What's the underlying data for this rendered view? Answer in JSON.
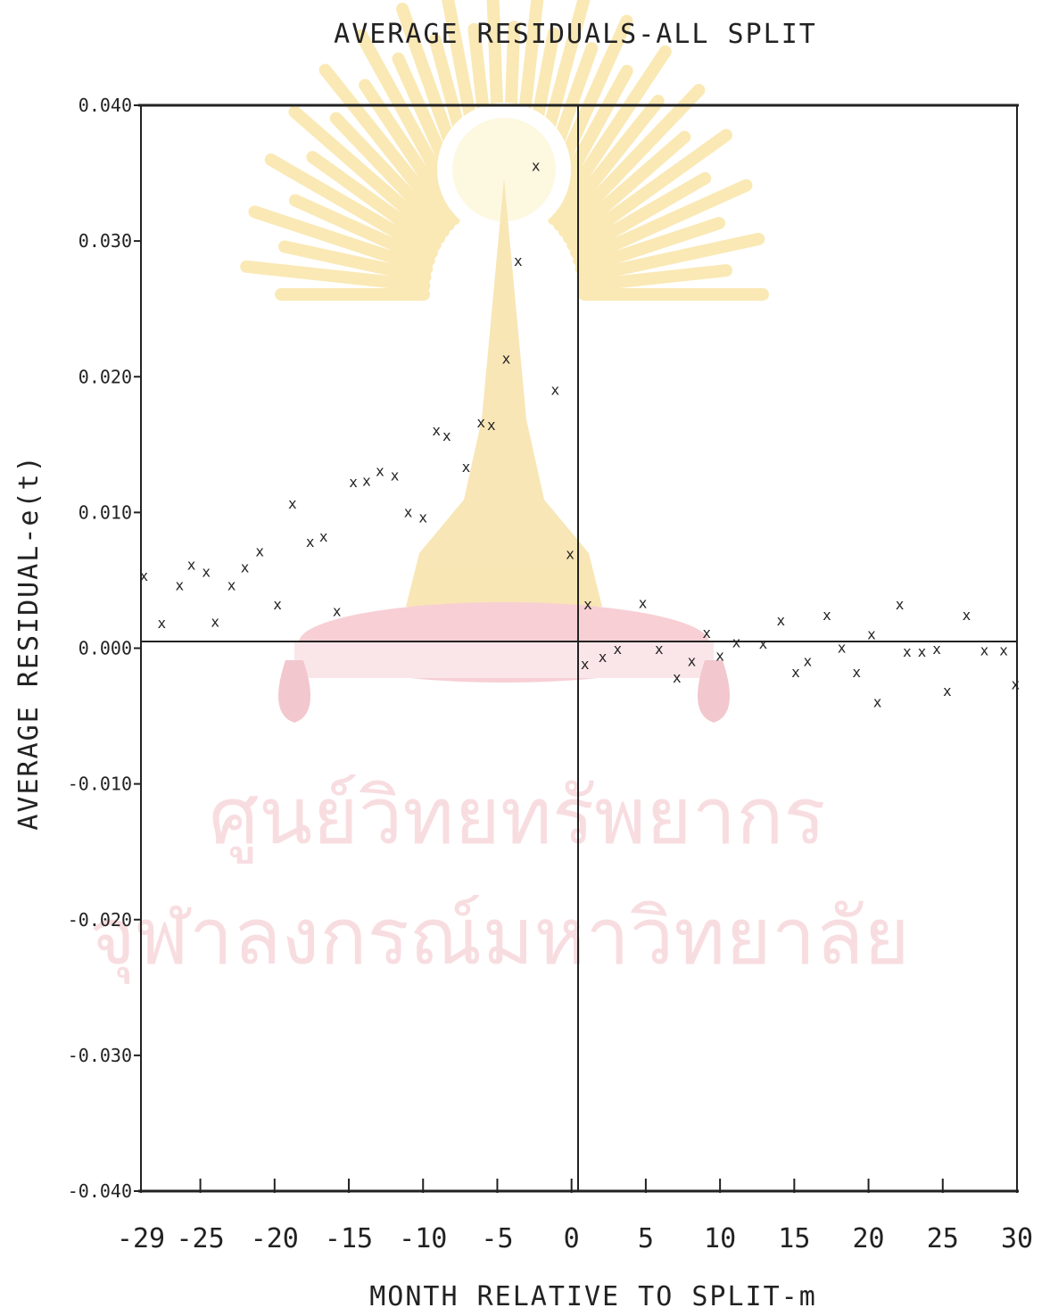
{
  "chart_data": {
    "type": "scatter",
    "title": "AVERAGE RESIDUALS-ALL SPLIT",
    "xlabel": "MONTH RELATIVE TO SPLIT-m",
    "ylabel": "AVERAGE RESIDUAL-e(t)",
    "xlim": [
      -29,
      30
    ],
    "ylim": [
      -0.04,
      0.04
    ],
    "x_ticks": [
      -29,
      -25,
      -20,
      -15,
      -10,
      -5,
      0,
      5,
      10,
      15,
      20,
      25,
      30
    ],
    "x_tick_labels": [
      "-29",
      "-25",
      "-20",
      "-15",
      "-10",
      "-5",
      "0",
      "5",
      "10",
      "15",
      "20",
      "25",
      "30"
    ],
    "y_ticks": [
      0.04,
      0.03,
      0.02,
      0.01,
      0.0,
      -0.01,
      -0.02,
      -0.03,
      -0.04
    ],
    "y_tick_labels": [
      "0.040",
      "0.030",
      "0.020",
      "0.010",
      "0.000",
      "-0.010",
      "-0.020",
      "-0.030",
      "-0.040"
    ],
    "grid": false,
    "reference_lines": {
      "x": 0,
      "y": 0
    },
    "marker": "x",
    "points": [
      [
        -28.8,
        0.0053
      ],
      [
        -27.6,
        0.0018
      ],
      [
        -26.4,
        0.0046
      ],
      [
        -25.6,
        0.0061
      ],
      [
        -24.6,
        0.0056
      ],
      [
        -24.0,
        0.0019
      ],
      [
        -22.9,
        0.0046
      ],
      [
        -22.0,
        0.0059
      ],
      [
        -21.0,
        0.0071
      ],
      [
        -19.8,
        0.0032
      ],
      [
        -18.8,
        0.0106
      ],
      [
        -17.6,
        0.0078
      ],
      [
        -16.7,
        0.0082
      ],
      [
        -15.8,
        0.0027
      ],
      [
        -14.7,
        0.0122
      ],
      [
        -13.8,
        0.0123
      ],
      [
        -12.9,
        0.013
      ],
      [
        -11.9,
        0.0127
      ],
      [
        -11.0,
        0.01
      ],
      [
        -10.0,
        0.0096
      ],
      [
        -9.1,
        0.016
      ],
      [
        -8.4,
        0.0156
      ],
      [
        -7.1,
        0.0133
      ],
      [
        -6.1,
        0.0166
      ],
      [
        -5.4,
        0.0164
      ],
      [
        -4.4,
        0.0213
      ],
      [
        -3.6,
        0.0285
      ],
      [
        -2.4,
        0.0355
      ],
      [
        -1.1,
        0.019
      ],
      [
        -0.1,
        0.0069
      ],
      [
        1.1,
        0.0032
      ],
      [
        0.9,
        -0.0012
      ],
      [
        2.1,
        -0.0007
      ],
      [
        3.1,
        -0.0001
      ],
      [
        4.8,
        0.0033
      ],
      [
        5.9,
        -0.0001
      ],
      [
        7.1,
        -0.0022
      ],
      [
        8.1,
        -0.001
      ],
      [
        9.1,
        0.0011
      ],
      [
        10.0,
        -0.0006
      ],
      [
        11.1,
        0.0004
      ],
      [
        12.9,
        0.0003
      ],
      [
        14.1,
        0.002
      ],
      [
        15.1,
        -0.0018
      ],
      [
        15.9,
        -0.001
      ],
      [
        17.2,
        0.0024
      ],
      [
        18.2,
        0.0
      ],
      [
        19.2,
        -0.0018
      ],
      [
        20.2,
        0.001
      ],
      [
        20.6,
        -0.004
      ],
      [
        22.1,
        0.0032
      ],
      [
        22.6,
        -0.0003
      ],
      [
        23.6,
        -0.0003
      ],
      [
        24.6,
        -0.0001
      ],
      [
        25.3,
        -0.0032
      ],
      [
        26.6,
        0.0024
      ],
      [
        27.8,
        -0.0002
      ],
      [
        29.1,
        -0.0002
      ],
      [
        29.9,
        -0.0027
      ]
    ]
  },
  "watermark": {
    "line1": "ศูนย์วิทยทรัพยากร",
    "line2": "จุฬาลงกรณ์มหาวิทยาลัย"
  },
  "colors": {
    "ink": "#222222",
    "watermark_fill": "#f3c2c7",
    "watermark_emblem": "#f6d87a"
  }
}
